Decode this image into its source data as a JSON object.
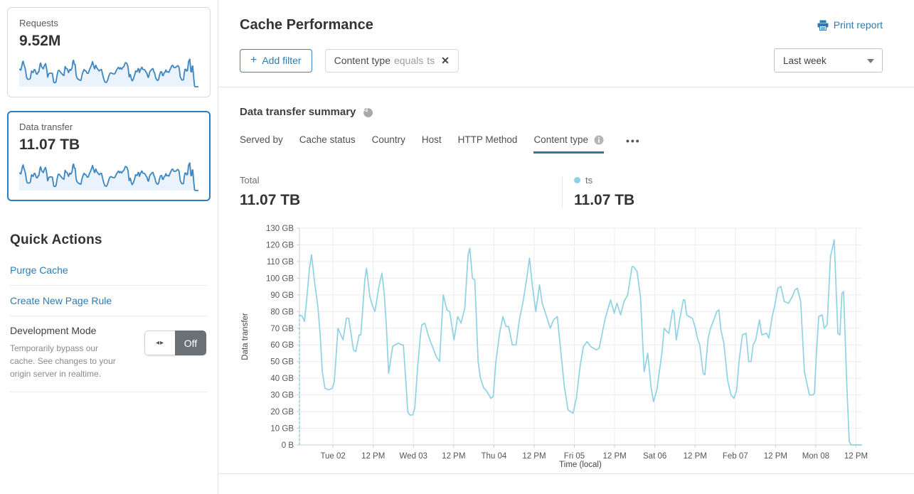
{
  "sidebar": {
    "requests_card": {
      "label": "Requests",
      "value": "9.52M"
    },
    "data_transfer_card": {
      "label": "Data transfer",
      "value": "11.07 TB"
    },
    "quick_actions": {
      "title": "Quick Actions",
      "links": [
        "Purge Cache",
        "Create New Page Rule"
      ],
      "development_mode": {
        "title": "Development Mode",
        "description": "Temporarily bypass our cache. See changes to your origin server in realtime.",
        "toggle_state": "Off"
      }
    }
  },
  "header": {
    "title": "Cache Performance",
    "print_label": "Print report",
    "add_filter": {
      "icon": "+",
      "label": "Add filter"
    },
    "filter_chip": {
      "field": "Content type",
      "operator": "equals",
      "value": "ts",
      "close_icon": "✕"
    },
    "time_range": "Last week"
  },
  "summary": {
    "title": "Data transfer summary",
    "tabs": [
      "Served by",
      "Cache status",
      "Country",
      "Host",
      "HTTP Method",
      "Content type"
    ],
    "active_tab": "Content type",
    "more_label": "•••",
    "total_label": "Total",
    "total_value": "11.07 TB",
    "series_label": "ts",
    "series_value": "11.07 TB"
  },
  "colors": {
    "accent_blue": "#2f7bbf",
    "link_blue": "#2c7cb3",
    "chart_line": "#8fd2e3",
    "sparkline_stroke": "#3e87c2",
    "sparkline_fill": "#eaf3fb",
    "tab_underline": "#35798c",
    "grid": "#ececec",
    "axis": "#cfcfcf"
  },
  "chart_data": {
    "type": "line",
    "title": "Data transfer summary",
    "xlabel": "Time (local)",
    "ylabel": "Data transfer",
    "ylim": [
      0,
      130
    ],
    "t_range": [
      0,
      167.6
    ],
    "unit": "GB",
    "grid": true,
    "y_ticks": [
      {
        "v": 0,
        "label": "0 B"
      },
      {
        "v": 10,
        "label": "10 GB"
      },
      {
        "v": 20,
        "label": "20 GB"
      },
      {
        "v": 30,
        "label": "30 GB"
      },
      {
        "v": 40,
        "label": "40 GB"
      },
      {
        "v": 50,
        "label": "50 GB"
      },
      {
        "v": 60,
        "label": "60 GB"
      },
      {
        "v": 70,
        "label": "70 GB"
      },
      {
        "v": 80,
        "label": "80 GB"
      },
      {
        "v": 90,
        "label": "90 GB"
      },
      {
        "v": 100,
        "label": "100 GB"
      },
      {
        "v": 110,
        "label": "110 GB"
      },
      {
        "v": 120,
        "label": "120 GB"
      },
      {
        "v": 130,
        "label": "130 GB"
      }
    ],
    "x_ticks": [
      {
        "t": 10,
        "label": "Tue 02"
      },
      {
        "t": 22,
        "label": "12 PM"
      },
      {
        "t": 34,
        "label": "Wed 03"
      },
      {
        "t": 46,
        "label": "12 PM"
      },
      {
        "t": 58,
        "label": "Thu 04"
      },
      {
        "t": 70,
        "label": "12 PM"
      },
      {
        "t": 82,
        "label": "Fri 05"
      },
      {
        "t": 94,
        "label": "12 PM"
      },
      {
        "t": 106,
        "label": "Sat 06"
      },
      {
        "t": 118,
        "label": "12 PM"
      },
      {
        "t": 130,
        "label": "Feb 07"
      },
      {
        "t": 142,
        "label": "12 PM"
      },
      {
        "t": 154,
        "label": "Mon 08"
      },
      {
        "t": 166,
        "label": "12 PM"
      }
    ],
    "start_dashed_from_zero": true,
    "series": [
      {
        "name": "ts",
        "total": "11.07 TB",
        "points": [
          [
            0,
            78
          ],
          [
            0.9,
            77
          ],
          [
            1.5,
            74
          ],
          [
            2.3,
            90
          ],
          [
            3,
            106
          ],
          [
            3.6,
            114
          ],
          [
            4.5,
            98
          ],
          [
            5.5,
            83
          ],
          [
            6.2,
            66
          ],
          [
            6.8,
            44
          ],
          [
            7.6,
            34
          ],
          [
            8.7,
            33
          ],
          [
            9.8,
            34
          ],
          [
            10.4,
            38
          ],
          [
            11.5,
            70
          ],
          [
            13,
            63
          ],
          [
            14,
            76
          ],
          [
            14.7,
            76
          ],
          [
            16.1,
            57
          ],
          [
            16.8,
            56
          ],
          [
            17.8,
            66
          ],
          [
            18.3,
            66
          ],
          [
            19.5,
            99
          ],
          [
            20,
            106
          ],
          [
            21,
            89
          ],
          [
            21.7,
            84
          ],
          [
            22.5,
            80
          ],
          [
            23.8,
            96
          ],
          [
            24.6,
            103
          ],
          [
            25.3,
            90
          ],
          [
            25.9,
            72
          ],
          [
            26.6,
            43
          ],
          [
            27.8,
            59
          ],
          [
            28.5,
            60
          ],
          [
            29.5,
            61
          ],
          [
            30.6,
            60
          ],
          [
            31,
            60
          ],
          [
            31.9,
            33
          ],
          [
            32.3,
            20
          ],
          [
            32.9,
            18
          ],
          [
            33.8,
            18
          ],
          [
            34.4,
            22
          ],
          [
            35.3,
            48
          ],
          [
            36.1,
            66
          ],
          [
            36.5,
            72
          ],
          [
            37.4,
            73
          ],
          [
            38.4,
            66
          ],
          [
            38.9,
            63
          ],
          [
            40.8,
            53
          ],
          [
            41.8,
            50
          ],
          [
            42.9,
            90
          ],
          [
            44,
            81
          ],
          [
            44.8,
            80
          ],
          [
            46.1,
            63
          ],
          [
            47.2,
            77
          ],
          [
            48.2,
            73
          ],
          [
            49.3,
            82
          ],
          [
            50.3,
            114
          ],
          [
            50.8,
            118
          ],
          [
            51.6,
            100
          ],
          [
            52.3,
            99
          ],
          [
            53.3,
            50
          ],
          [
            54,
            40
          ],
          [
            55,
            34
          ],
          [
            55.6,
            33
          ],
          [
            57.1,
            28
          ],
          [
            57.8,
            29
          ],
          [
            58.6,
            50
          ],
          [
            59.7,
            67
          ],
          [
            60.7,
            77
          ],
          [
            61.6,
            71
          ],
          [
            62.4,
            71
          ],
          [
            63.5,
            60
          ],
          [
            64.6,
            60
          ],
          [
            65.6,
            75
          ],
          [
            66.7,
            86
          ],
          [
            67.8,
            100
          ],
          [
            68.6,
            112
          ],
          [
            69.5,
            95
          ],
          [
            70.5,
            80
          ],
          [
            71.6,
            96
          ],
          [
            72.4,
            85
          ],
          [
            73.7,
            77
          ],
          [
            74.8,
            70
          ],
          [
            75.8,
            75
          ],
          [
            76.9,
            77
          ],
          [
            78,
            55
          ],
          [
            79,
            35
          ],
          [
            80.1,
            21
          ],
          [
            80.9,
            20
          ],
          [
            81.6,
            19
          ],
          [
            82.6,
            28
          ],
          [
            83.7,
            47
          ],
          [
            84.7,
            59
          ],
          [
            85.8,
            62
          ],
          [
            86.9,
            59
          ],
          [
            88.6,
            57
          ],
          [
            89.4,
            58
          ],
          [
            91.1,
            75
          ],
          [
            92.8,
            87
          ],
          [
            93.9,
            79
          ],
          [
            94.7,
            85
          ],
          [
            95.8,
            78
          ],
          [
            96.8,
            86
          ],
          [
            97.9,
            90
          ],
          [
            99.2,
            107
          ],
          [
            99.6,
            107
          ],
          [
            100.7,
            104
          ],
          [
            101.3,
            95
          ],
          [
            101.7,
            89
          ],
          [
            102.8,
            44
          ],
          [
            103.9,
            55
          ],
          [
            104.9,
            34
          ],
          [
            105.6,
            26
          ],
          [
            106.6,
            33
          ],
          [
            108.1,
            55
          ],
          [
            108.8,
            70
          ],
          [
            109.6,
            68
          ],
          [
            110.2,
            67
          ],
          [
            111.3,
            81
          ],
          [
            111.7,
            80
          ],
          [
            112.4,
            63
          ],
          [
            113.4,
            75
          ],
          [
            114.5,
            87
          ],
          [
            114.9,
            87
          ],
          [
            115.5,
            78
          ],
          [
            116.2,
            77
          ],
          [
            117.2,
            76
          ],
          [
            118.1,
            70
          ],
          [
            118.7,
            64
          ],
          [
            119.4,
            60
          ],
          [
            120.4,
            43
          ],
          [
            120.9,
            42
          ],
          [
            121.9,
            64
          ],
          [
            122.6,
            70
          ],
          [
            123.6,
            75
          ],
          [
            124.5,
            80
          ],
          [
            125.1,
            81
          ],
          [
            125.7,
            69
          ],
          [
            126.6,
            61
          ],
          [
            127.7,
            39
          ],
          [
            128.7,
            30
          ],
          [
            129.6,
            28
          ],
          [
            130.4,
            33
          ],
          [
            131.1,
            50
          ],
          [
            132.1,
            66
          ],
          [
            133.2,
            67
          ],
          [
            134,
            50
          ],
          [
            134.7,
            50
          ],
          [
            135.3,
            60
          ],
          [
            136.1,
            63
          ],
          [
            137.2,
            75
          ],
          [
            137.9,
            66
          ],
          [
            139.3,
            67
          ],
          [
            140,
            64
          ],
          [
            141,
            77
          ],
          [
            141.7,
            83
          ],
          [
            142.7,
            94
          ],
          [
            143.6,
            95
          ],
          [
            144.6,
            86
          ],
          [
            145.9,
            85
          ],
          [
            147,
            89
          ],
          [
            147.8,
            93
          ],
          [
            148.5,
            94
          ],
          [
            149.5,
            86
          ],
          [
            150.6,
            44
          ],
          [
            152.1,
            30
          ],
          [
            153.1,
            30
          ],
          [
            153.6,
            31
          ],
          [
            154.2,
            55
          ],
          [
            154.9,
            77
          ],
          [
            155.9,
            78
          ],
          [
            156.5,
            70
          ],
          [
            157.4,
            72
          ],
          [
            158.4,
            113
          ],
          [
            159.5,
            123
          ],
          [
            160.6,
            67
          ],
          [
            161.2,
            66
          ],
          [
            161.8,
            91
          ],
          [
            162.3,
            92
          ],
          [
            163.3,
            34
          ],
          [
            164,
            2
          ],
          [
            164.6,
            0
          ],
          [
            167.6,
            0
          ]
        ]
      }
    ]
  }
}
